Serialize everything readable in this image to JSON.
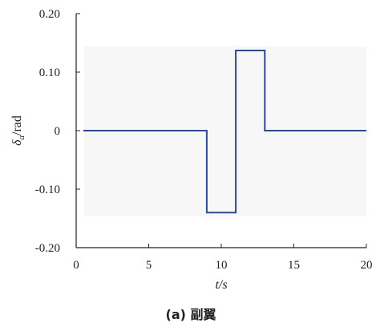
{
  "chart_data": {
    "type": "line",
    "title": "",
    "caption": "(a) 副翼",
    "xlabel": "t/s",
    "ylabel": "δa/rad",
    "ylabel_main": "δ",
    "ylabel_sub": "a",
    "ylabel_unit": "/rad",
    "xlim": [
      0,
      20
    ],
    "ylim": [
      -0.2,
      0.2
    ],
    "x_ticks": [
      0,
      5,
      10,
      15,
      20
    ],
    "x_tick_labels": [
      "0",
      "5",
      "10",
      "15",
      "20"
    ],
    "y_ticks": [
      0.2,
      0.1,
      0,
      -0.1,
      -0.2
    ],
    "y_tick_labels": [
      "0.20",
      "0.10",
      "0",
      "-0.10",
      "-0.20"
    ],
    "grid": false,
    "series": [
      {
        "x": [
          0.5,
          9,
          9,
          11,
          11,
          13,
          13,
          20
        ],
        "y": [
          0,
          0,
          -0.14,
          -0.14,
          0.137,
          0.137,
          0,
          0
        ],
        "color": "#2E4A8E"
      }
    ]
  }
}
